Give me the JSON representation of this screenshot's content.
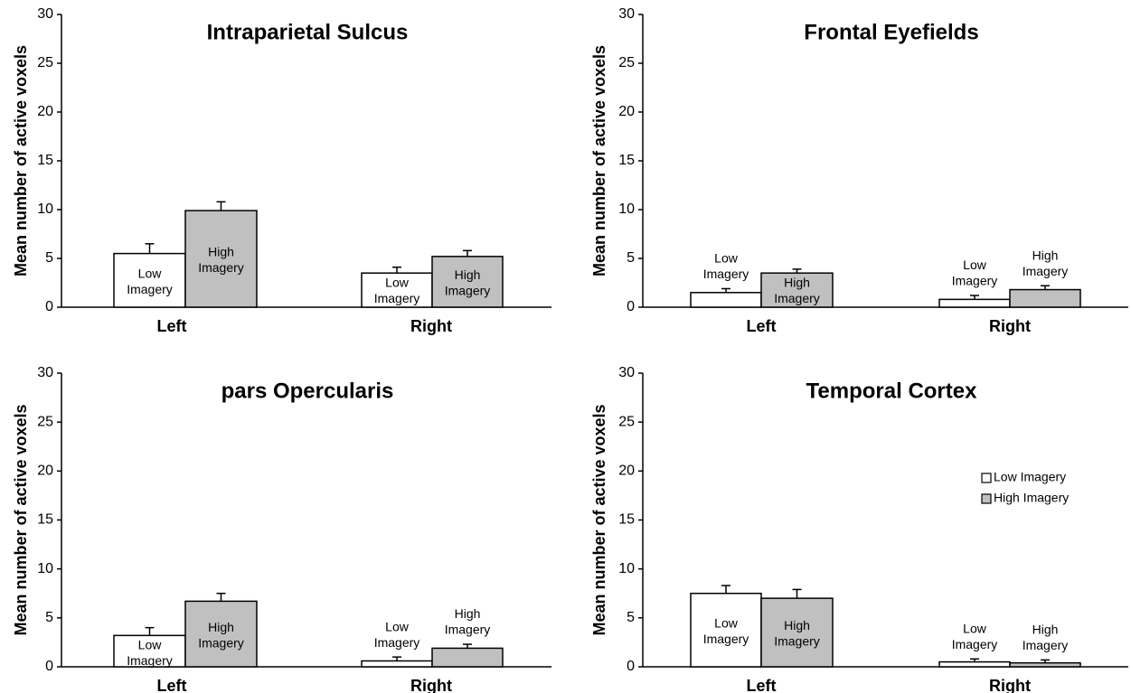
{
  "colors": {
    "low": "#ffffff",
    "high": "#c0c0c0",
    "axis": "#000000"
  },
  "legend": {
    "placement": "right",
    "items": [
      "Low Imagery",
      "High Imagery"
    ]
  },
  "chart_data": [
    {
      "type": "bar",
      "title": "Intraparietal Sulcus",
      "ylabel": "Mean number of active voxels",
      "ylim": [
        0,
        30
      ],
      "yticks": [
        "0",
        "5",
        "10",
        "15",
        "20",
        "25",
        "30"
      ],
      "categories": [
        "Left",
        "Right"
      ],
      "series": [
        {
          "values": [
            5.5,
            3.5
          ],
          "errors": [
            1.0,
            0.6
          ],
          "labels": [
            "Low\nImagery",
            "Low\nImagery"
          ]
        },
        {
          "values": [
            9.9,
            5.2
          ],
          "errors": [
            0.9,
            0.6
          ],
          "labels": [
            "High\nImagery",
            "High\nImagery"
          ]
        }
      ]
    },
    {
      "type": "bar",
      "title": "Frontal Eyefields",
      "ylabel": "Mean number of active voxels",
      "ylim": [
        0,
        30
      ],
      "yticks": [
        "0",
        "5",
        "10",
        "15",
        "20",
        "25",
        "30"
      ],
      "categories": [
        "Left",
        "Right"
      ],
      "series": [
        {
          "values": [
            1.5,
            0.8
          ],
          "errors": [
            0.4,
            0.4
          ],
          "labels": [
            "Low\nImagery",
            "Low\nImagery"
          ]
        },
        {
          "values": [
            3.5,
            1.8
          ],
          "errors": [
            0.4,
            0.4
          ],
          "labels": [
            "High\nImagery",
            "High\nImagery"
          ]
        }
      ]
    },
    {
      "type": "bar",
      "title": "pars Opercularis",
      "ylabel": "Mean number of active voxels",
      "ylim": [
        0,
        30
      ],
      "yticks": [
        "0",
        "5",
        "10",
        "15",
        "20",
        "25",
        "30"
      ],
      "categories": [
        "Left",
        "Right"
      ],
      "series": [
        {
          "values": [
            3.2,
            0.6
          ],
          "errors": [
            0.8,
            0.4
          ],
          "labels": [
            "Low\nImagery",
            "Low\nImagery"
          ]
        },
        {
          "values": [
            6.7,
            1.9
          ],
          "errors": [
            0.8,
            0.4
          ],
          "labels": [
            "High\nImagery",
            "High\nImagery"
          ]
        }
      ]
    },
    {
      "type": "bar",
      "title": "Temporal Cortex",
      "ylabel": "Mean number of active voxels",
      "ylim": [
        0,
        30
      ],
      "yticks": [
        "0",
        "5",
        "10",
        "15",
        "20",
        "25",
        "30"
      ],
      "categories": [
        "Left",
        "Right"
      ],
      "series": [
        {
          "values": [
            7.5,
            0.5
          ],
          "errors": [
            0.8,
            0.3
          ],
          "labels": [
            "Low\nImagery",
            "Low\nImagery"
          ]
        },
        {
          "values": [
            7.0,
            0.4
          ],
          "errors": [
            0.9,
            0.3
          ],
          "labels": [
            "High\nImagery",
            "High\nImagery"
          ]
        }
      ]
    }
  ]
}
